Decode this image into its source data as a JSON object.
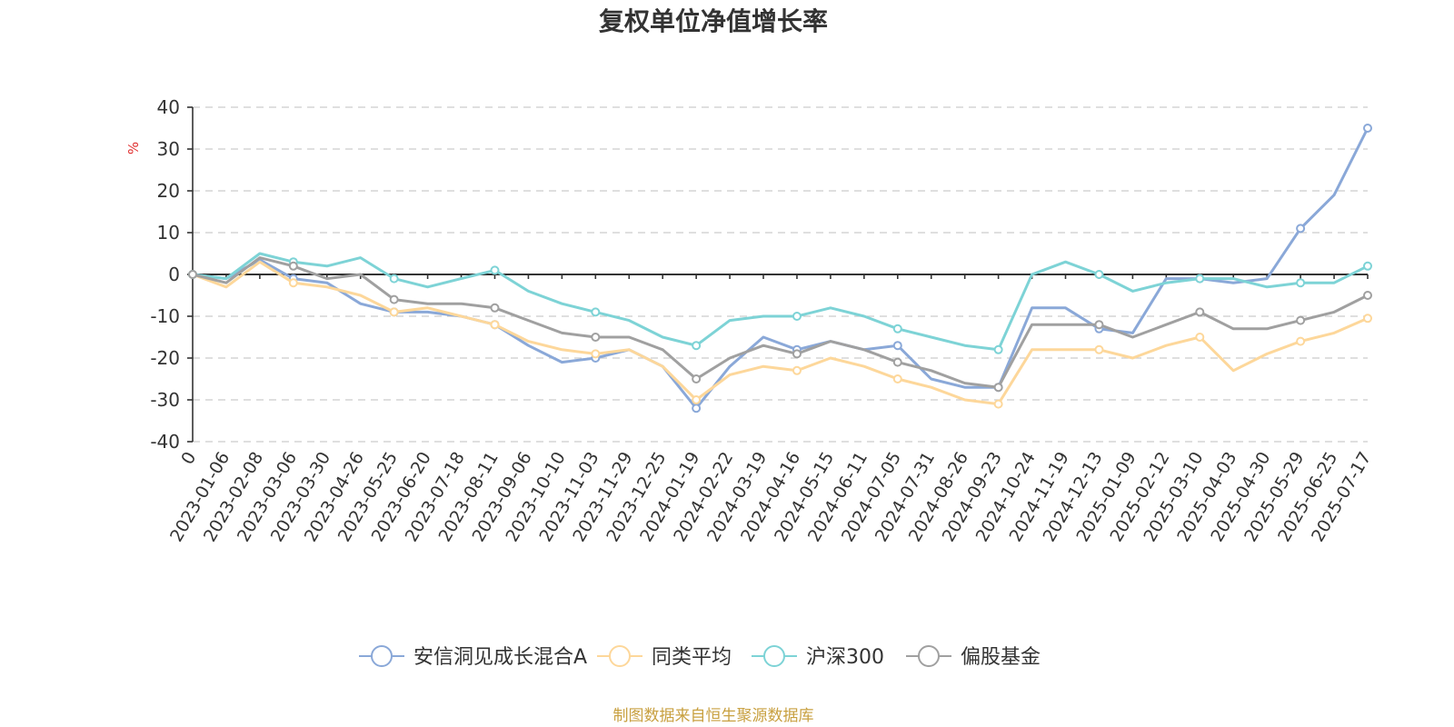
{
  "chart_data": {
    "type": "line",
    "title": "复权单位净值增长率",
    "ylabel": "%",
    "ylim": [
      -40,
      40
    ],
    "yticks": [
      40,
      30,
      20,
      10,
      0,
      -10,
      -20,
      -30,
      -40
    ],
    "grid": true,
    "legend_position": "bottom",
    "x": [
      "0",
      "2023-01-06",
      "2023-02-08",
      "2023-03-06",
      "2023-03-30",
      "2023-04-26",
      "2023-05-25",
      "2023-06-20",
      "2023-07-18",
      "2023-08-11",
      "2023-09-06",
      "2023-10-10",
      "2023-11-03",
      "2023-11-29",
      "2023-12-25",
      "2024-01-19",
      "2024-02-22",
      "2024-03-19",
      "2024-04-16",
      "2024-05-15",
      "2024-06-11",
      "2024-07-05",
      "2024-07-31",
      "2024-08-26",
      "2024-09-23",
      "2024-10-24",
      "2024-11-19",
      "2024-12-13",
      "2025-01-09",
      "2025-02-12",
      "2025-03-10",
      "2025-04-03",
      "2025-04-30",
      "2025-05-29",
      "2025-06-25",
      "2025-07-17"
    ],
    "series": [
      {
        "name": "安信洞见成长混合A",
        "color": "#8aa8d8",
        "values": [
          0,
          -1,
          3.5,
          -1,
          -2,
          -7,
          -9,
          -9,
          -10,
          -12,
          -17,
          -21,
          -20,
          -18,
          -22,
          -32,
          -22,
          -15,
          -18,
          -16,
          -18,
          -17,
          -25,
          -27,
          -27,
          -8,
          -8,
          -13,
          -14,
          -1,
          -1,
          -2,
          -1,
          11,
          19,
          35
        ]
      },
      {
        "name": "同类平均",
        "color": "#fdd79a",
        "values": [
          0,
          -3,
          3,
          -2,
          -3,
          -5,
          -9,
          -8,
          -10,
          -12,
          -16,
          -18,
          -19,
          -18,
          -22,
          -30,
          -24,
          -22,
          -23,
          -20,
          -22,
          -25,
          -27,
          -30,
          -31,
          -18,
          -18,
          -18,
          -20,
          -17,
          -15,
          -23,
          -19,
          -16,
          -14,
          -10.5
        ]
      },
      {
        "name": "沪深300",
        "color": "#7dd3d6",
        "values": [
          0,
          -1,
          5,
          3,
          2,
          4,
          -1,
          -3,
          -1,
          1,
          -4,
          -7,
          -9,
          -11,
          -15,
          -17,
          -11,
          -10,
          -10,
          -8,
          -10,
          -13,
          -15,
          -17,
          -18,
          0,
          3,
          0,
          -4,
          -2,
          -1,
          -1,
          -3,
          -2,
          -2,
          2
        ]
      },
      {
        "name": "偏股基金",
        "color": "#a0a0a0",
        "values": [
          0,
          -2,
          4,
          2,
          -1,
          0,
          -6,
          -7,
          -7,
          -8,
          -11,
          -14,
          -15,
          -15,
          -18,
          -25,
          -20,
          -17,
          -19,
          -16,
          -18,
          -21,
          -23,
          -26,
          -27,
          -12,
          -12,
          -12,
          -15,
          -12,
          -9,
          -13,
          -13,
          -11,
          -9,
          -5
        ]
      }
    ]
  },
  "source_note": "制图数据来自恒生聚源数据库",
  "colors": {
    "title": "#333333",
    "unit": "#e03030",
    "source": "#c8a040",
    "zero_axis": "#333333"
  }
}
